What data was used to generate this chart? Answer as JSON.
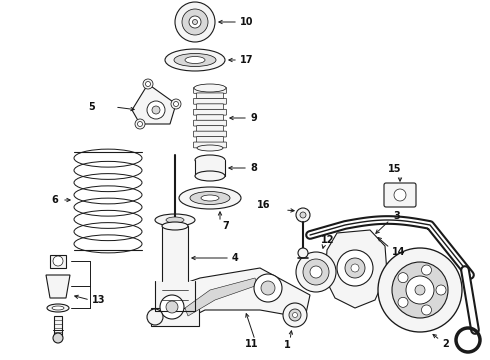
{
  "background_color": "#ffffff",
  "fig_width": 4.9,
  "fig_height": 3.6,
  "dpi": 100,
  "line_color": "#1a1a1a",
  "label_color": "#111111",
  "label_fontsize": 7.0,
  "arrow_lw": 0.7,
  "part_lw": 0.8,
  "part_fill": "#f5f5f5",
  "part_fill_dark": "#d8d8d8",
  "white": "#ffffff"
}
